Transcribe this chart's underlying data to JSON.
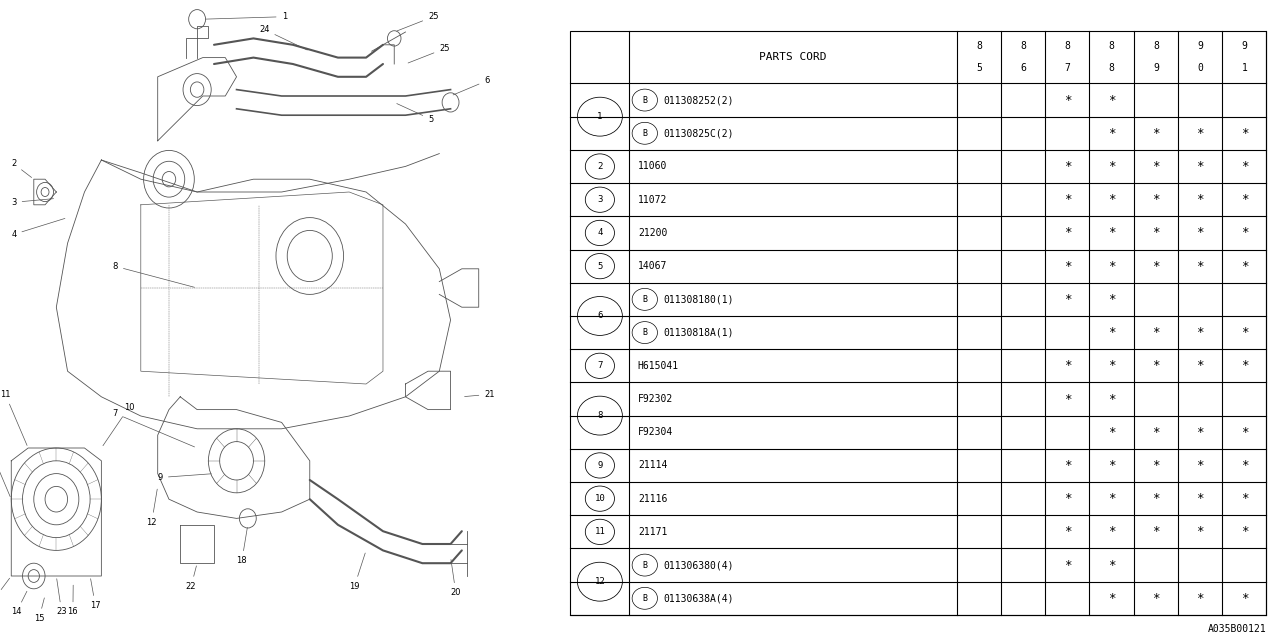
{
  "bg_color": "#ffffff",
  "col_header": "PARTS CORD",
  "year_cols": [
    "8\n5",
    "8\n6",
    "8\n7",
    "8\n8",
    "8\n9",
    "9\n0",
    "9\n1"
  ],
  "rows": [
    {
      "num": "1",
      "parts": [
        "B011308252(2)",
        "B01130825C(2)"
      ],
      "marks": [
        [
          "",
          "",
          "*",
          "*",
          "",
          "",
          ""
        ],
        [
          "",
          "",
          "",
          "*",
          "*",
          "*",
          "*"
        ]
      ]
    },
    {
      "num": "2",
      "parts": [
        "11060"
      ],
      "marks": [
        [
          "",
          "",
          "*",
          "*",
          "*",
          "*",
          "*"
        ]
      ]
    },
    {
      "num": "3",
      "parts": [
        "11072"
      ],
      "marks": [
        [
          "",
          "",
          "*",
          "*",
          "*",
          "*",
          "*"
        ]
      ]
    },
    {
      "num": "4",
      "parts": [
        "21200"
      ],
      "marks": [
        [
          "",
          "",
          "*",
          "*",
          "*",
          "*",
          "*"
        ]
      ]
    },
    {
      "num": "5",
      "parts": [
        "14067"
      ],
      "marks": [
        [
          "",
          "",
          "*",
          "*",
          "*",
          "*",
          "*"
        ]
      ]
    },
    {
      "num": "6",
      "parts": [
        "B011308180(1)",
        "B01130818A(1)"
      ],
      "marks": [
        [
          "",
          "",
          "*",
          "*",
          "",
          "",
          ""
        ],
        [
          "",
          "",
          "",
          "*",
          "*",
          "*",
          "*"
        ]
      ]
    },
    {
      "num": "7",
      "parts": [
        "H615041"
      ],
      "marks": [
        [
          "",
          "",
          "*",
          "*",
          "*",
          "*",
          "*"
        ]
      ]
    },
    {
      "num": "8",
      "parts": [
        "F92302",
        "F92304"
      ],
      "marks": [
        [
          "",
          "",
          "*",
          "*",
          "",
          "",
          ""
        ],
        [
          "",
          "",
          "",
          "*",
          "*",
          "*",
          "*"
        ]
      ]
    },
    {
      "num": "9",
      "parts": [
        "21114"
      ],
      "marks": [
        [
          "",
          "",
          "*",
          "*",
          "*",
          "*",
          "*"
        ]
      ]
    },
    {
      "num": "10",
      "parts": [
        "21116"
      ],
      "marks": [
        [
          "",
          "",
          "*",
          "*",
          "*",
          "*",
          "*"
        ]
      ]
    },
    {
      "num": "11",
      "parts": [
        "21171"
      ],
      "marks": [
        [
          "",
          "",
          "*",
          "*",
          "*",
          "*",
          "*"
        ]
      ]
    },
    {
      "num": "12",
      "parts": [
        "B011306380(4)",
        "B01130638A(4)"
      ],
      "marks": [
        [
          "",
          "",
          "*",
          "*",
          "",
          "",
          ""
        ],
        [
          "",
          "",
          "",
          "*",
          "*",
          "*",
          "*"
        ]
      ]
    }
  ],
  "footer_code": "A035B00121",
  "font_color": "#000000",
  "line_color": "#000000"
}
